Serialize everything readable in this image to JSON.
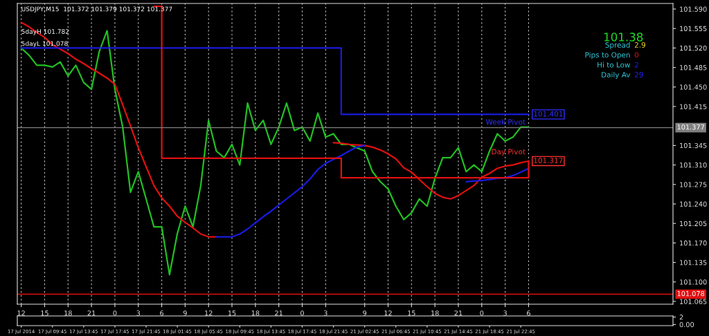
{
  "chart_data": [
    {
      "type": "line",
      "ylim": [
        101.06,
        101.6
      ],
      "yticks": [
        {
          "value": 101.59,
          "label": "101.590"
        },
        101.555,
        {
          "value": 101.52,
          "label": "101.520"
        },
        101.485,
        {
          "value": 101.45,
          "label": "101.450"
        },
        101.415,
        101.345,
        {
          "value": 101.31,
          "label": "101.310"
        },
        101.275,
        {
          "value": 101.24,
          "label": "101.240"
        },
        101.205,
        {
          "value": 101.17,
          "label": "101.170"
        },
        101.135,
        {
          "value": 101.1,
          "label": "101.100"
        },
        101.065
      ],
      "categories": [
        "12",
        null,
        null,
        "15",
        null,
        null,
        "18",
        null,
        null,
        "21",
        null,
        null,
        "0",
        null,
        null,
        "3",
        null,
        null,
        "6",
        null,
        null,
        "9",
        null,
        null,
        "12",
        null,
        null,
        "15",
        null,
        null,
        "18",
        null,
        null,
        "21",
        null,
        null,
        "0",
        null,
        null,
        "3",
        null,
        null,
        null,
        null,
        "9",
        null,
        null,
        "12",
        null,
        null,
        "15",
        null,
        null,
        "18",
        null,
        null,
        "21",
        null,
        null,
        "0",
        null,
        null,
        "3",
        null,
        null,
        "6",
        null,
        null,
        null,
        null,
        null,
        null,
        null,
        null,
        null,
        null,
        null,
        null,
        null,
        null,
        null,
        null,
        null,
        null
      ],
      "grid": "x",
      "legend": false,
      "series": [
        {
          "type": "line",
          "color": "#22c022",
          "values": [
            101.52,
            101.507,
            101.489,
            101.489,
            101.486,
            101.495,
            101.47,
            101.489,
            101.458,
            101.446,
            101.514,
            101.551,
            101.446,
            101.378,
            101.261,
            101.298,
            101.249,
            101.199,
            101.199,
            101.113,
            101.187,
            101.236,
            101.199,
            101.273,
            101.39,
            101.335,
            101.323,
            101.347,
            101.31,
            101.421,
            101.372,
            101.39,
            101.347,
            101.378,
            101.421,
            101.372,
            101.378,
            101.353,
            101.403,
            101.36,
            101.366,
            101.347,
            101.347,
            101.341,
            101.335,
            101.298,
            101.28,
            101.267,
            101.236,
            101.212,
            101.224,
            101.249,
            101.236,
            101.286,
            101.323,
            101.323,
            101.341,
            101.298,
            101.31,
            101.298,
            101.335,
            101.366,
            101.353,
            101.36,
            101.378,
            101.378,
            null,
            null,
            null,
            null,
            null,
            null,
            null,
            null,
            null,
            null,
            null,
            null,
            null,
            null,
            null,
            null,
            null,
            null
          ]
        },
        {
          "type": "line",
          "color": "#e01010",
          "values": [
            101.566,
            101.558,
            101.548,
            101.539,
            101.526,
            101.518,
            101.51,
            101.5,
            101.492,
            101.483,
            101.475,
            101.466,
            101.455,
            101.418,
            101.38,
            101.341,
            101.307,
            101.273,
            101.251,
            101.236,
            101.218,
            101.207,
            101.197,
            101.186,
            101.181,
            101.181,
            null,
            null,
            null,
            null,
            null,
            null,
            null,
            null,
            null,
            null,
            null,
            null,
            null,
            null,
            101.35,
            101.349,
            101.347,
            101.346,
            101.345,
            101.342,
            101.337,
            101.33,
            101.321,
            101.305,
            101.297,
            101.284,
            101.271,
            101.259,
            101.252,
            101.249,
            101.255,
            101.264,
            101.273,
            101.288,
            101.295,
            101.304,
            101.308,
            101.31,
            101.314,
            101.317,
            null,
            null,
            null,
            null,
            null,
            null,
            null,
            null,
            null,
            null,
            null,
            null,
            null,
            null,
            null,
            null,
            null,
            null
          ]
        },
        {
          "type": "line",
          "color": "#1a1ae0",
          "values": [
            null,
            null,
            null,
            null,
            null,
            null,
            null,
            null,
            null,
            null,
            null,
            null,
            null,
            null,
            null,
            null,
            null,
            null,
            null,
            null,
            null,
            null,
            null,
            null,
            null,
            101.181,
            101.181,
            101.181,
            101.186,
            101.195,
            101.206,
            101.217,
            101.227,
            101.238,
            101.249,
            101.26,
            101.271,
            101.285,
            101.302,
            101.313,
            101.32,
            101.327,
            101.335,
            101.342,
            101.345,
            null,
            null,
            null,
            null,
            null,
            null,
            null,
            null,
            null,
            null,
            null,
            null,
            101.28,
            101.281,
            101.282,
            101.284,
            101.286,
            101.287,
            101.291,
            101.297,
            101.304,
            null,
            null,
            null,
            null,
            null,
            null,
            null,
            null,
            null,
            null,
            null,
            null,
            null,
            null,
            null,
            null,
            null,
            null
          ]
        },
        {
          "type": "step",
          "color": "#1a1ae0",
          "values": [
            101.52,
            101.52,
            101.52,
            101.52,
            101.52,
            101.52,
            101.52,
            101.52,
            101.52,
            101.52,
            101.52,
            101.52,
            101.52,
            101.52,
            101.52,
            101.52,
            101.52,
            101.52,
            101.52,
            101.52,
            101.52,
            101.52,
            101.52,
            101.52,
            101.52,
            101.52,
            101.52,
            101.52,
            101.52,
            101.52,
            101.52,
            101.52,
            101.52,
            101.52,
            101.52,
            101.52,
            101.52,
            101.52,
            101.52,
            101.52,
            101.52,
            101.401,
            101.401,
            101.401,
            101.401,
            101.401,
            101.401,
            101.401,
            101.401,
            101.401,
            101.401,
            101.401,
            101.401,
            101.401,
            101.401,
            101.401,
            101.401,
            101.401,
            101.401,
            101.401,
            101.401,
            101.401,
            101.401,
            101.401,
            101.401,
            101.401,
            null,
            null,
            null,
            null,
            null,
            null,
            null,
            null,
            null,
            null,
            null,
            null,
            null,
            null,
            null,
            null,
            null,
            null
          ]
        },
        {
          "type": "step",
          "color": "#e01010",
          "values": [
            null,
            null,
            null,
            null,
            null,
            null,
            null,
            null,
            null,
            null,
            null,
            null,
            null,
            null,
            null,
            null,
            null,
            101.595,
            101.322,
            101.322,
            101.322,
            101.322,
            101.322,
            101.322,
            101.322,
            101.322,
            101.322,
            101.322,
            101.322,
            101.322,
            101.322,
            101.322,
            101.322,
            101.322,
            101.322,
            101.322,
            101.322,
            101.322,
            101.322,
            101.322,
            101.322,
            101.287,
            101.287,
            101.287,
            101.287,
            101.287,
            101.287,
            101.287,
            101.287,
            101.287,
            101.287,
            101.287,
            101.287,
            101.287,
            101.287,
            101.287,
            101.287,
            101.287,
            101.287,
            101.287,
            101.287,
            101.287,
            101.287,
            101.287,
            101.287,
            101.317,
            null,
            null,
            null,
            null,
            null,
            null,
            null,
            null,
            null,
            null,
            null,
            null,
            null,
            null,
            null,
            null,
            null,
            null
          ]
        }
      ],
      "ref_lines": [
        {
          "axis": "y",
          "value": 101.377,
          "label": "101.377",
          "color": "#808080"
        },
        {
          "axis": "y",
          "value": 101.078,
          "label": "101.078",
          "color": "#e01010"
        }
      ],
      "annotations": [
        "USDJPY,M15  101.372 101.379 101.372 101.377",
        "5dayH 101.782",
        "5dayL 101.078",
        "101.38",
        "Spread",
        "2.9",
        "Pips to Open",
        "0",
        "Hi to Low",
        "2",
        "Daily Av",
        "29",
        "101.401",
        "Week Pivot",
        "101.317",
        "Day Pivot"
      ]
    },
    {
      "type": "line",
      "ylim": [
        -0.3,
        2.3
      ],
      "yticks": [
        2,
        {
          "value": 0,
          "label": "0.00"
        }
      ],
      "categories": [
        "17 Jul 2014",
        null,
        null,
        null,
        "17 Jul 09:45",
        null,
        null,
        null,
        "17 Jul 13:45",
        null,
        null,
        null,
        "17 Jul 17:45",
        null,
        null,
        null,
        "17 Jul 21:45",
        null,
        null,
        null,
        "18 Jul 01:45",
        null,
        null,
        null,
        "18 Jul 05:45",
        null,
        null,
        null,
        "18 Jul 09:45",
        null,
        null,
        null,
        "18 Jul 13:45",
        null,
        null,
        null,
        "18 Jul 17:45",
        null,
        null,
        null,
        "18 Jul 21:45",
        null,
        null,
        null,
        "21 Jul 02:45",
        null,
        null,
        null,
        "21 Jul 06:45",
        null,
        null,
        null,
        "21 Jul 10:45",
        null,
        null,
        null,
        "21 Jul 14:45",
        null,
        null,
        null,
        "21 Jul 18:45",
        null,
        null,
        null,
        "21 Jul 22:45",
        null,
        null,
        null,
        null,
        null,
        null,
        null,
        null,
        null,
        null,
        null,
        null,
        null,
        null,
        null,
        null,
        null,
        null,
        null
      ]
    }
  ]
}
